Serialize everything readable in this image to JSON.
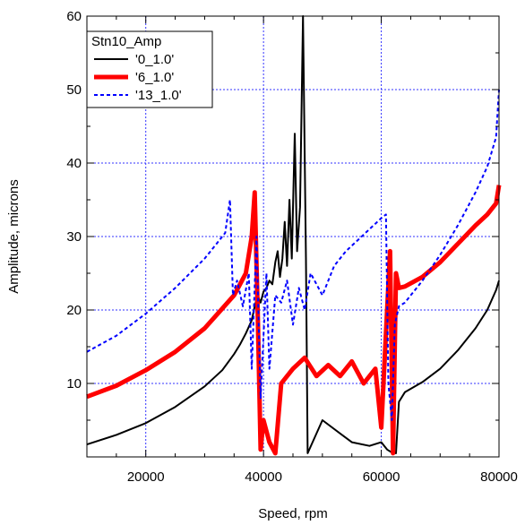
{
  "chart_data": {
    "type": "line",
    "title": "",
    "xlabel": "Speed, rpm",
    "ylabel": "Amplitude, microns",
    "xlim": [
      10000,
      80000
    ],
    "ylim": [
      0,
      60
    ],
    "xticks": [
      20000,
      40000,
      60000,
      80000
    ],
    "yticks": [
      10,
      20,
      30,
      40,
      50,
      60
    ],
    "x_tick_labels": [
      "20000",
      "40000",
      "60000",
      "80000"
    ],
    "y_tick_labels": [
      "10",
      "20",
      "30",
      "40",
      "50",
      "60"
    ],
    "grid": true,
    "legend": {
      "title": "Stn10_Amp",
      "placement": "top-left"
    },
    "series": [
      {
        "name": "'0_1.0'",
        "color": "#000000",
        "style": "solid",
        "points": [
          [
            10000,
            1.7
          ],
          [
            15000,
            3.0
          ],
          [
            20000,
            4.6
          ],
          [
            25000,
            6.8
          ],
          [
            30000,
            9.6
          ],
          [
            33000,
            11.8
          ],
          [
            35000,
            14.0
          ],
          [
            36000,
            15.3
          ],
          [
            37000,
            16.8
          ],
          [
            38000,
            18.6
          ],
          [
            38500,
            20.5
          ],
          [
            39000,
            22.0
          ],
          [
            39500,
            21.0
          ],
          [
            40000,
            22.5
          ],
          [
            40500,
            23.0
          ],
          [
            41000,
            24.0
          ],
          [
            41500,
            23.5
          ],
          [
            42000,
            26.5
          ],
          [
            42400,
            28.0
          ],
          [
            42800,
            24.5
          ],
          [
            43200,
            27.0
          ],
          [
            43600,
            32.0
          ],
          [
            44000,
            26.0
          ],
          [
            44400,
            35.0
          ],
          [
            44800,
            27.0
          ],
          [
            45300,
            44.0
          ],
          [
            45700,
            28.0
          ],
          [
            46200,
            34.0
          ],
          [
            46700,
            60.0
          ],
          [
            47200,
            27.0
          ],
          [
            47500,
            0.5
          ],
          [
            50000,
            5.0
          ],
          [
            55000,
            2.0
          ],
          [
            58000,
            1.5
          ],
          [
            60000,
            2.0
          ],
          [
            61000,
            1.0
          ],
          [
            62000,
            0.5
          ],
          [
            62500,
            0.5
          ],
          [
            63000,
            7.5
          ],
          [
            64000,
            8.8
          ],
          [
            67000,
            10.2
          ],
          [
            70000,
            12.0
          ],
          [
            73000,
            14.5
          ],
          [
            76000,
            17.5
          ],
          [
            78000,
            20.0
          ],
          [
            79500,
            22.7
          ],
          [
            80000,
            24.0
          ]
        ]
      },
      {
        "name": "'6_1.0'",
        "color": "#ff0000",
        "style": "solid-thick",
        "points": [
          [
            10000,
            8.2
          ],
          [
            15000,
            9.7
          ],
          [
            20000,
            11.8
          ],
          [
            25000,
            14.3
          ],
          [
            30000,
            17.5
          ],
          [
            33000,
            20.2
          ],
          [
            35000,
            22.0
          ],
          [
            36000,
            23.5
          ],
          [
            37000,
            25.0
          ],
          [
            38000,
            30.0
          ],
          [
            38500,
            36.0
          ],
          [
            39000,
            20.0
          ],
          [
            39500,
            1.0
          ],
          [
            40000,
            5.0
          ],
          [
            41000,
            2.0
          ],
          [
            42000,
            0.5
          ],
          [
            43000,
            10.0
          ],
          [
            45000,
            12.0
          ],
          [
            47000,
            13.5
          ],
          [
            49000,
            11.0
          ],
          [
            51000,
            12.5
          ],
          [
            53000,
            11.0
          ],
          [
            55000,
            13.0
          ],
          [
            57000,
            10.0
          ],
          [
            59000,
            12.0
          ],
          [
            60000,
            4.0
          ],
          [
            61000,
            20.0
          ],
          [
            61500,
            28.0
          ],
          [
            62000,
            0.5
          ],
          [
            62500,
            25.0
          ],
          [
            63000,
            23.0
          ],
          [
            64000,
            23.2
          ],
          [
            67000,
            24.5
          ],
          [
            70000,
            26.5
          ],
          [
            73000,
            29.0
          ],
          [
            76000,
            31.5
          ],
          [
            78000,
            33.0
          ],
          [
            79500,
            34.5
          ],
          [
            80000,
            37.0
          ]
        ]
      },
      {
        "name": "'13_1.0'",
        "color": "#0000ff",
        "style": "dashed",
        "points": [
          [
            10000,
            14.3
          ],
          [
            15000,
            16.5
          ],
          [
            20000,
            19.5
          ],
          [
            25000,
            23.0
          ],
          [
            30000,
            27.0
          ],
          [
            32000,
            29.0
          ],
          [
            33500,
            30.5
          ],
          [
            34300,
            35.0
          ],
          [
            34800,
            22.0
          ],
          [
            35500,
            24.0
          ],
          [
            36500,
            20.5
          ],
          [
            37500,
            25.0
          ],
          [
            38000,
            12.0
          ],
          [
            38800,
            30.0
          ],
          [
            39500,
            8.0
          ],
          [
            40500,
            25.0
          ],
          [
            41000,
            12.0
          ],
          [
            42000,
            22.0
          ],
          [
            43000,
            21.0
          ],
          [
            44000,
            24.0
          ],
          [
            45000,
            18.0
          ],
          [
            46000,
            23.0
          ],
          [
            47000,
            20.0
          ],
          [
            48000,
            25.0
          ],
          [
            50000,
            22.0
          ],
          [
            52000,
            26.0
          ],
          [
            54000,
            28.0
          ],
          [
            56000,
            29.5
          ],
          [
            58000,
            31.0
          ],
          [
            60000,
            32.5
          ],
          [
            60800,
            33.0
          ],
          [
            61200,
            10.0
          ],
          [
            61800,
            5.0
          ],
          [
            62300,
            18.0
          ],
          [
            63000,
            20.5
          ],
          [
            64000,
            21.0
          ],
          [
            67000,
            24.0
          ],
          [
            70000,
            27.5
          ],
          [
            73000,
            31.5
          ],
          [
            76000,
            36.0
          ],
          [
            78000,
            39.5
          ],
          [
            79500,
            43.5
          ],
          [
            80000,
            50.0
          ]
        ]
      }
    ]
  }
}
